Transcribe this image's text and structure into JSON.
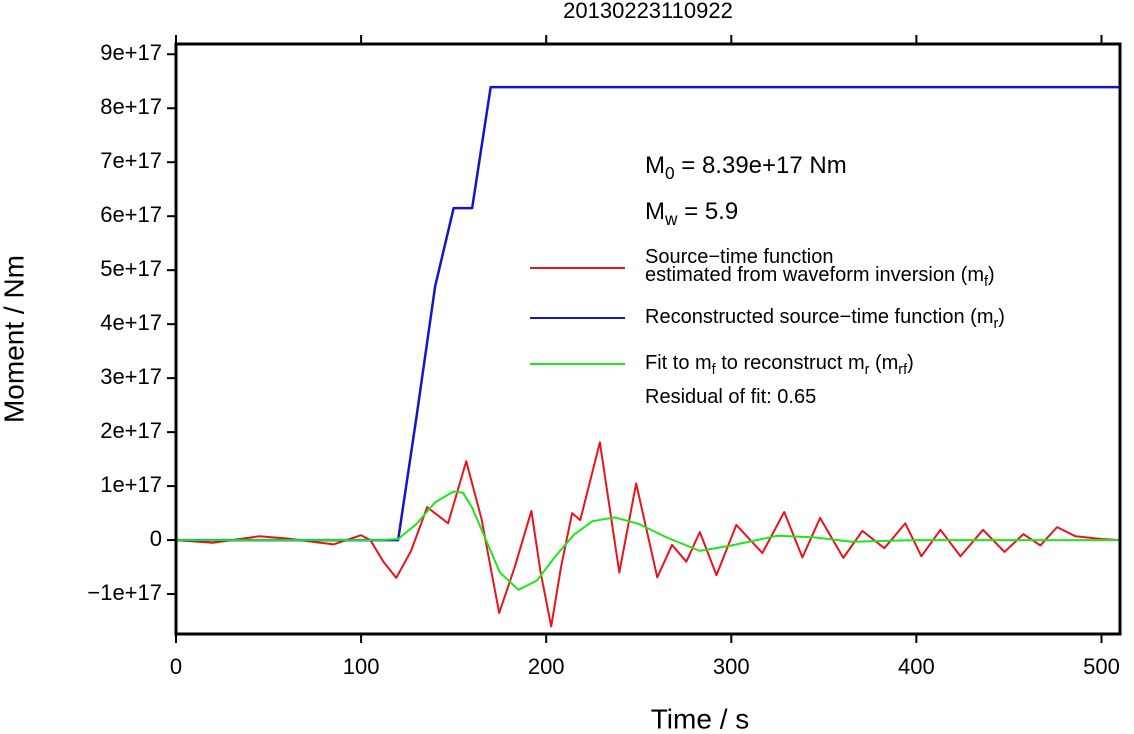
{
  "chart_data": {
    "type": "line",
    "title": "20130223110922",
    "xlabel": "Time / s",
    "ylabel": "Moment / Nm",
    "xlim": [
      0,
      510
    ],
    "ylim": [
      -1.74e+17,
      9.19e+17
    ],
    "xticks": [
      0,
      100,
      200,
      300,
      400,
      500
    ],
    "yticks": [
      {
        "value": -1e+17,
        "label": "−1e+17"
      },
      0,
      {
        "value": 1e+17,
        "label": "1e+17"
      },
      {
        "value": 2e+17,
        "label": "2e+17"
      },
      {
        "value": 3e+17,
        "label": "3e+17"
      },
      {
        "value": 4e+17,
        "label": "4e+17"
      },
      {
        "value": 5e+17,
        "label": "5e+17"
      },
      {
        "value": 6e+17,
        "label": "6e+17"
      },
      {
        "value": 7e+17,
        "label": "7e+17"
      },
      {
        "value": 8e+17,
        "label": "8e+17"
      },
      {
        "value": 9e+17,
        "label": "9e+17"
      }
    ],
    "annotations": [
      [
        "M",
        {
          "sub": "0"
        },
        " = 8.39e+17 Nm"
      ],
      [
        "M",
        {
          "sub": "w"
        },
        " = 5.9"
      ],
      [
        "Residual of fit: 0.65"
      ]
    ],
    "series": [
      {
        "name": [
          [
            "Source−time function"
          ],
          [
            "estimated from waveform inversion (m",
            {
              "sub": "f"
            },
            ")"
          ]
        ],
        "color": "#e8141c",
        "x": [
          0,
          20,
          45,
          60,
          85,
          100,
          105,
          112,
          119,
          127,
          135.7,
          147,
          156.8,
          165,
          174.6,
          183,
          192,
          197,
          202.7,
          208,
          214,
          218.4,
          229,
          239.5,
          248.6,
          260,
          268,
          275.7,
          283,
          292,
          302.7,
          316.8,
          328.6,
          338.4,
          348,
          360.5,
          370.8,
          382.7,
          394,
          402.7,
          413,
          423.8,
          436,
          447.6,
          457.8,
          467,
          476,
          486,
          500,
          510
        ],
        "values": [
          0,
          -5000000000000000.0,
          7000000000000000.0,
          3000000000000000.0,
          -8000000000000000.0,
          9000000000000000.0,
          0,
          -4e+16,
          -7e+16,
          -2e+16,
          6.1e+16,
          3.1e+16,
          1.46e+17,
          4e+16,
          -1.35e+17,
          -5e+16,
          5.4e+16,
          -6e+16,
          -1.6e+17,
          -5e+16,
          5e+16,
          3.7e+16,
          1.81e+17,
          -6e+16,
          1.05e+17,
          -6.9e+16,
          -9000000000000000.0,
          -4e+16,
          1.5e+16,
          -6.5e+16,
          2.8e+16,
          -2.4e+16,
          5.2e+16,
          -3.2e+16,
          4.1e+16,
          -3.3e+16,
          1.7e+16,
          -1.5e+16,
          3.1e+16,
          -3e+16,
          1.9e+16,
          -3e+16,
          1.9e+16,
          -2.2e+16,
          1.1e+16,
          -1e+16,
          2.4e+16,
          7000000000000000.0,
          2000000000000000.0,
          0
        ]
      },
      {
        "name": [
          [
            "Reconstructed source−time function (m",
            {
              "sub": "r"
            },
            ")"
          ]
        ],
        "color": "#1414c8",
        "x": [
          0,
          120,
          130,
          140,
          150,
          160,
          170,
          510
        ],
        "values": [
          0,
          0,
          2.3e+17,
          4.7e+17,
          6.15e+17,
          6.15e+17,
          8.39e+17,
          8.39e+17
        ]
      },
      {
        "name": [
          [
            "Fit to m",
            {
              "sub": "f"
            },
            " to reconstruct m",
            {
              "sub": "r"
            },
            " (m",
            {
              "sub": "rf"
            },
            ")"
          ]
        ],
        "color": "#1ee61e",
        "x": [
          0,
          110,
          120,
          130,
          140,
          150,
          155,
          160,
          170,
          175,
          185,
          195,
          205,
          215,
          225,
          237,
          250,
          265,
          283,
          300,
          325,
          345,
          365,
          400,
          510
        ],
        "values": [
          0,
          0,
          2000000000000000.0,
          3e+16,
          7e+16,
          9e+16,
          8.8e+16,
          6e+16,
          -2e+16,
          -6e+16,
          -9.2e+16,
          -7.5e+16,
          -3e+16,
          1e+16,
          3.5e+16,
          4.2e+16,
          3e+16,
          5000000000000000.0,
          -2e+16,
          -1e+16,
          8000000000000000.0,
          5000000000000000.0,
          -3000000000000000.0,
          0,
          0
        ]
      }
    ]
  }
}
